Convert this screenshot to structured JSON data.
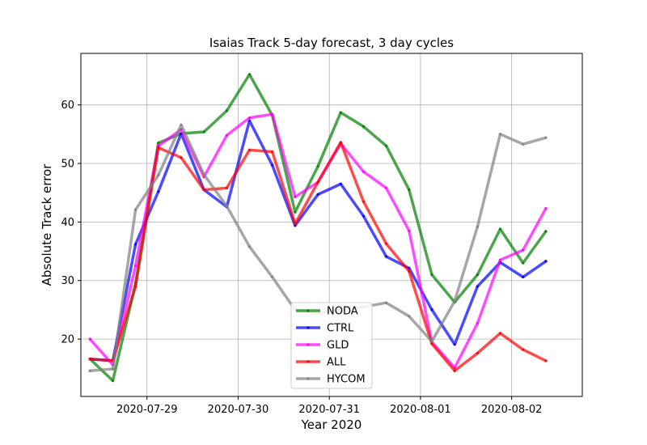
{
  "chart_data": {
    "type": "line",
    "title": "Isaias Track 5-day forecast, 3 day cycles",
    "xlabel": "Year 2020",
    "ylabel": "Absolute Track error",
    "x_tick_labels": [
      "2020-07-29",
      "2020-07-30",
      "2020-07-31",
      "2020-08-01",
      "2020-08-02"
    ],
    "x_tick_positions": [
      2.5,
      6.5,
      10.5,
      14.5,
      18.5
    ],
    "y_ticks": [
      20,
      30,
      40,
      50,
      60
    ],
    "xlim": [
      -0.4,
      21.6
    ],
    "ylim": [
      10.2,
      68.8
    ],
    "grid": true,
    "legend_position": "bottom-center",
    "series": [
      {
        "name": "NODA",
        "color": "#008000",
        "points": [
          [
            0,
            16.6
          ],
          [
            1,
            12.9
          ],
          [
            2,
            29.5
          ],
          [
            3,
            53.5
          ],
          [
            4,
            55.1
          ],
          [
            5,
            55.4
          ],
          [
            6,
            59.0
          ],
          [
            7,
            65.2
          ],
          [
            8,
            58.2
          ],
          [
            9,
            41.7
          ],
          [
            10,
            49.5
          ],
          [
            11,
            58.7
          ],
          [
            12,
            56.3
          ],
          [
            13,
            53.0
          ],
          [
            14,
            45.5
          ],
          [
            15,
            31.0
          ],
          [
            16,
            26.3
          ],
          [
            17,
            31.0
          ],
          [
            18,
            38.8
          ],
          [
            19,
            33.0
          ],
          [
            20,
            38.4
          ]
        ]
      },
      {
        "name": "CTRL",
        "color": "#0000ff",
        "points": [
          [
            0,
            16.6
          ],
          [
            1,
            16.3
          ],
          [
            2,
            36.2
          ],
          [
            3,
            45.2
          ],
          [
            4,
            55.1
          ],
          [
            5,
            45.5
          ],
          [
            6,
            42.6
          ],
          [
            7,
            57.3
          ],
          [
            8,
            49.7
          ],
          [
            9,
            39.4
          ],
          [
            10,
            44.7
          ],
          [
            11,
            46.5
          ],
          [
            12,
            41.0
          ],
          [
            13,
            34.1
          ],
          [
            14,
            32.1
          ],
          [
            15,
            25.0
          ],
          [
            16,
            19.1
          ],
          [
            17,
            29.0
          ],
          [
            18,
            33.1
          ],
          [
            19,
            30.6
          ],
          [
            20,
            33.3
          ]
        ]
      },
      {
        "name": "GLD",
        "color": "#ff00ff",
        "points": [
          [
            0,
            20.0
          ],
          [
            1,
            15.6
          ],
          [
            2,
            32.5
          ],
          [
            3,
            53.0
          ],
          [
            4,
            55.8
          ],
          [
            5,
            47.7
          ],
          [
            6,
            54.8
          ],
          [
            7,
            57.8
          ],
          [
            8,
            58.4
          ],
          [
            9,
            44.3
          ],
          [
            10,
            46.8
          ],
          [
            11,
            53.4
          ],
          [
            12,
            48.6
          ],
          [
            13,
            45.8
          ],
          [
            14,
            38.5
          ],
          [
            15,
            19.5
          ],
          [
            16,
            15.1
          ],
          [
            17,
            22.7
          ],
          [
            18,
            33.5
          ],
          [
            19,
            35.2
          ],
          [
            20,
            42.3
          ]
        ]
      },
      {
        "name": "ALL",
        "color": "#ff0000",
        "points": [
          [
            0,
            16.6
          ],
          [
            1,
            16.3
          ],
          [
            2,
            29.0
          ],
          [
            3,
            52.7
          ],
          [
            4,
            51.0
          ],
          [
            5,
            45.5
          ],
          [
            6,
            45.8
          ],
          [
            7,
            52.3
          ],
          [
            8,
            52.0
          ],
          [
            9,
            39.7
          ],
          [
            10,
            46.8
          ],
          [
            11,
            53.6
          ],
          [
            12,
            43.5
          ],
          [
            13,
            36.3
          ],
          [
            14,
            31.6
          ],
          [
            15,
            19.2
          ],
          [
            16,
            14.6
          ],
          [
            17,
            17.6
          ],
          [
            18,
            21.0
          ],
          [
            19,
            18.2
          ],
          [
            20,
            16.3
          ]
        ]
      },
      {
        "name": "HYCOM",
        "color": "#808080",
        "points": [
          [
            0,
            14.6
          ],
          [
            1,
            14.9
          ],
          [
            2,
            42.1
          ],
          [
            3,
            48.0
          ],
          [
            4,
            56.6
          ],
          [
            5,
            48.1
          ],
          [
            6,
            42.7
          ],
          [
            7,
            35.8
          ],
          [
            8,
            30.6
          ],
          [
            9,
            25.0
          ],
          [
            10,
            24.4
          ],
          [
            11,
            25.0
          ],
          [
            12,
            25.5
          ],
          [
            13,
            26.2
          ],
          [
            14,
            23.9
          ],
          [
            15,
            19.6
          ],
          [
            16,
            26.5
          ],
          [
            17,
            39.2
          ],
          [
            18,
            55.0
          ],
          [
            19,
            53.3
          ],
          [
            20,
            54.4
          ]
        ]
      }
    ]
  }
}
